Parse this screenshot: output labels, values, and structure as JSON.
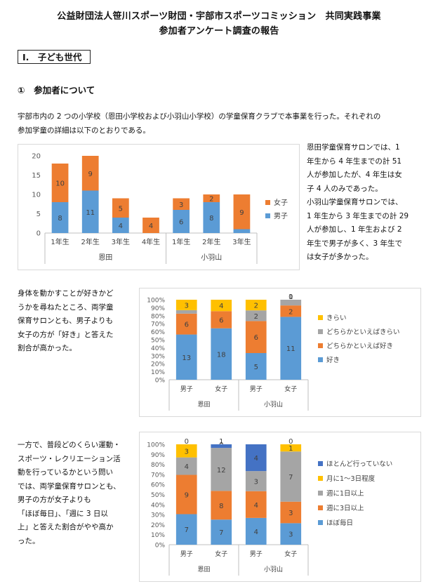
{
  "header": {
    "title_line1": "公益財団法人笹川スポーツ財団・宇部市スポーツコミッション　共同実践事業",
    "title_line2": "参加者アンケート調査の報告"
  },
  "section": {
    "heading": "Ⅰ.　子ども世代"
  },
  "subsection": {
    "heading": "①　参加者について"
  },
  "intro": {
    "line1": "宇部市内の 2 つの小学校（恩田小学校および小羽山小学校）の学童保育クラブで本事業を行った。それぞれの",
    "line2": "参加学童の詳細は以下のとおりである。"
  },
  "text1": {
    "lines": [
      "恩田学童保育サロンでは、1",
      "年生から 4 年生までの計 51",
      "人が参加したが、4 年生は女",
      "子 4 人のみであった。",
      "小羽山学童保育サロンでは、",
      "1 年生から 3 年生までの計 29",
      "人が参加し、1 年生および 2",
      "年生で男子が多く、3 年生で",
      "は女子が多かった。"
    ]
  },
  "text2": {
    "lines": [
      "身体を動かすことが好きかど",
      "うかを尋ねたところ、両学童",
      "保育サロンとも、男子よりも",
      "女子の方が「好き」と答えた",
      "割合が高かった。"
    ]
  },
  "text3": {
    "lines": [
      "一方で、普段どのくらい運動・",
      "スポーツ・レクリエーション活",
      "動を行っているかという問い",
      "では、両学童保育サロンとも、",
      "男子の方が女子よりも",
      "「ほぼ毎日」、「週に 3 日以",
      "上」と答えた割合がやや高か",
      "った。"
    ]
  },
  "chart_data": [
    {
      "type": "bar",
      "stacked": true,
      "categories": [
        "1年生",
        "2年生",
        "3年生",
        "4年生",
        "1年生",
        "2年生",
        "3年生"
      ],
      "groups": [
        {
          "name": "恩田",
          "count": 4
        },
        {
          "name": "小羽山",
          "count": 3
        }
      ],
      "series": [
        {
          "name": "男子",
          "values": [
            8,
            11,
            4,
            0,
            6,
            8,
            1
          ],
          "color": "#5B9BD5"
        },
        {
          "name": "女子",
          "values": [
            10,
            9,
            5,
            4,
            3,
            2,
            9
          ],
          "color": "#ED7D31"
        }
      ],
      "ylim": [
        0,
        20
      ],
      "yticks": [
        0,
        5,
        10,
        15,
        20
      ],
      "legend": "right",
      "grid": false
    },
    {
      "type": "bar",
      "stacked": true,
      "percent": true,
      "categories": [
        "男子",
        "女子",
        "男子",
        "女子"
      ],
      "groups": [
        {
          "name": "恩田",
          "count": 2
        },
        {
          "name": "小羽山",
          "count": 2
        }
      ],
      "series": [
        {
          "name": "好き",
          "values": [
            13,
            18,
            5,
            11
          ],
          "color": "#5B9BD5"
        },
        {
          "name": "どちらかといえば好き",
          "values": [
            6,
            6,
            6,
            2
          ],
          "color": "#ED7D31"
        },
        {
          "name": "どちらかといえばきらい",
          "values": [
            1,
            0,
            2,
            1
          ],
          "color": "#A5A5A5"
        },
        {
          "name": "きらい",
          "values": [
            3,
            4,
            2,
            0
          ],
          "color": "#FFC000"
        }
      ],
      "ylim": [
        0,
        100
      ],
      "yticks": [
        "0%",
        "10%",
        "20%",
        "30%",
        "40%",
        "50%",
        "60%",
        "70%",
        "80%",
        "90%",
        "100%"
      ],
      "legend": "right",
      "grid": false
    },
    {
      "type": "bar",
      "stacked": true,
      "percent": true,
      "categories": [
        "男子",
        "女子",
        "男子",
        "女子"
      ],
      "groups": [
        {
          "name": "恩田",
          "count": 2
        },
        {
          "name": "小羽山",
          "count": 2
        }
      ],
      "series": [
        {
          "name": "ほぼ毎日",
          "values": [
            7,
            7,
            4,
            3
          ],
          "color": "#5B9BD5"
        },
        {
          "name": "週に3日以上",
          "values": [
            9,
            8,
            4,
            3
          ],
          "color": "#ED7D31"
        },
        {
          "name": "週に1日以上",
          "values": [
            4,
            12,
            3,
            7
          ],
          "color": "#A5A5A5"
        },
        {
          "name": "月に1～3日程度",
          "values": [
            3,
            0,
            0,
            1
          ],
          "color": "#FFC000"
        },
        {
          "name": "ほとんど行っていない",
          "values": [
            0,
            1,
            4,
            0
          ],
          "color": "#4472C4"
        }
      ],
      "ylim": [
        0,
        100
      ],
      "yticks": [
        "0%",
        "10%",
        "20%",
        "30%",
        "40%",
        "50%",
        "60%",
        "70%",
        "80%",
        "90%",
        "100%"
      ],
      "legend": "right",
      "grid": false
    }
  ]
}
